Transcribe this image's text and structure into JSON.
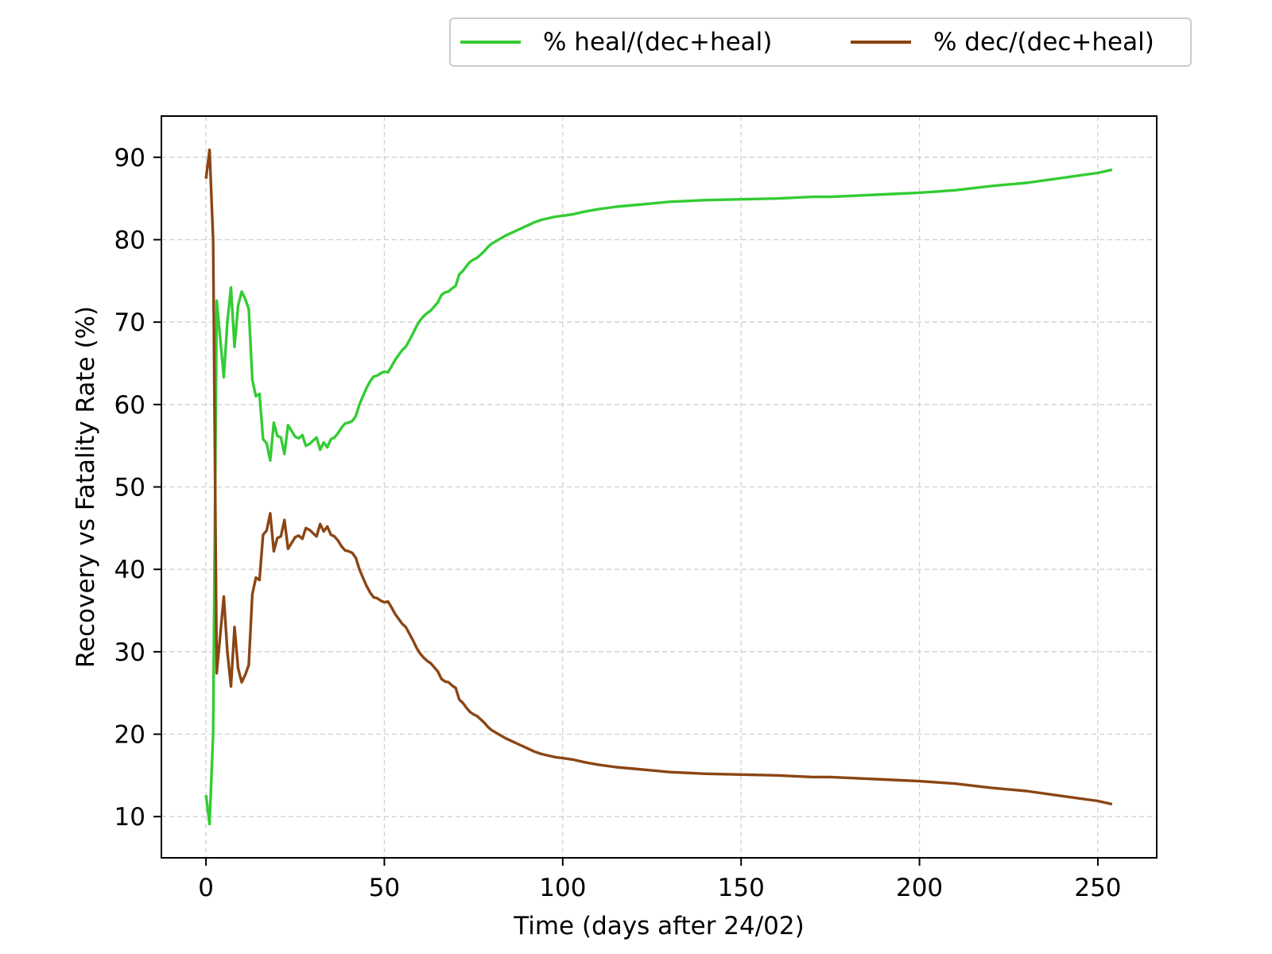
{
  "chart_data": {
    "type": "line",
    "title": "",
    "xlabel": "Time (days after 24/02)",
    "ylabel": "Recovery vs Fatality Rate (%)",
    "xlim": [
      -12.5,
      266.5
    ],
    "ylim": [
      5,
      95
    ],
    "xticks": [
      0,
      50,
      100,
      150,
      200,
      250
    ],
    "yticks": [
      10,
      20,
      30,
      40,
      50,
      60,
      70,
      80,
      90
    ],
    "grid": true,
    "legend_position": "top-right, outside above plot",
    "series": [
      {
        "name": "% heal/(dec+heal)",
        "color": "#33cc33",
        "points": [
          [
            0,
            12.6
          ],
          [
            1,
            9.1
          ],
          [
            2,
            20
          ],
          [
            3,
            72.6
          ],
          [
            4,
            68
          ],
          [
            5,
            63.3
          ],
          [
            6,
            70
          ],
          [
            7,
            74.2
          ],
          [
            8,
            67
          ],
          [
            9,
            72
          ],
          [
            10,
            73.7
          ],
          [
            11,
            72.8
          ],
          [
            12,
            71.6
          ],
          [
            13,
            63
          ],
          [
            14,
            61
          ],
          [
            15,
            61.3
          ],
          [
            16,
            55.8
          ],
          [
            17,
            55.3
          ],
          [
            18,
            53.2
          ],
          [
            19,
            57.8
          ],
          [
            20,
            56.2
          ],
          [
            21,
            56
          ],
          [
            22,
            54
          ],
          [
            23,
            57.5
          ],
          [
            24,
            56.8
          ],
          [
            25,
            56.1
          ],
          [
            26,
            55.9
          ],
          [
            27,
            56.3
          ],
          [
            28,
            55
          ],
          [
            29,
            55.2
          ],
          [
            30,
            55.6
          ],
          [
            31,
            56
          ],
          [
            32,
            54.5
          ],
          [
            33,
            55.4
          ],
          [
            34,
            54.8
          ],
          [
            35,
            55.8
          ],
          [
            36,
            56
          ],
          [
            37,
            56.5
          ],
          [
            38,
            57.2
          ],
          [
            39,
            57.7
          ],
          [
            40,
            57.8
          ],
          [
            41,
            58
          ],
          [
            42,
            58.6
          ],
          [
            43,
            60
          ],
          [
            44,
            61
          ],
          [
            45,
            62
          ],
          [
            46,
            62.8
          ],
          [
            47,
            63.4
          ],
          [
            48,
            63.5
          ],
          [
            49,
            63.8
          ],
          [
            50,
            64
          ],
          [
            51,
            63.9
          ],
          [
            52,
            64.6
          ],
          [
            53,
            65.4
          ],
          [
            54,
            66
          ],
          [
            55,
            66.6
          ],
          [
            56,
            67
          ],
          [
            57,
            67.8
          ],
          [
            58,
            68.6
          ],
          [
            59,
            69.5
          ],
          [
            60,
            70.2
          ],
          [
            61,
            70.7
          ],
          [
            62,
            71.1
          ],
          [
            63,
            71.4
          ],
          [
            64,
            71.9
          ],
          [
            65,
            72.4
          ],
          [
            66,
            73.3
          ],
          [
            67,
            73.6
          ],
          [
            68,
            73.7
          ],
          [
            69,
            74.1
          ],
          [
            70,
            74.4
          ],
          [
            71,
            75.8
          ],
          [
            72,
            76.2
          ],
          [
            73,
            76.8
          ],
          [
            74,
            77.3
          ],
          [
            75,
            77.6
          ],
          [
            76,
            77.8
          ],
          [
            77,
            78.2
          ],
          [
            78,
            78.6
          ],
          [
            79,
            79.1
          ],
          [
            80,
            79.5
          ],
          [
            82,
            80
          ],
          [
            84,
            80.5
          ],
          [
            86,
            80.9
          ],
          [
            88,
            81.3
          ],
          [
            90,
            81.7
          ],
          [
            92,
            82.1
          ],
          [
            94,
            82.4
          ],
          [
            96,
            82.6
          ],
          [
            98,
            82.8
          ],
          [
            100,
            82.9
          ],
          [
            103,
            83.1
          ],
          [
            106,
            83.4
          ],
          [
            110,
            83.7
          ],
          [
            115,
            84
          ],
          [
            120,
            84.2
          ],
          [
            125,
            84.4
          ],
          [
            130,
            84.6
          ],
          [
            135,
            84.7
          ],
          [
            140,
            84.8
          ],
          [
            150,
            84.9
          ],
          [
            160,
            85.0
          ],
          [
            170,
            85.2
          ],
          [
            175,
            85.2
          ],
          [
            180,
            85.3
          ],
          [
            190,
            85.5
          ],
          [
            200,
            85.7
          ],
          [
            210,
            86.0
          ],
          [
            220,
            86.5
          ],
          [
            230,
            86.9
          ],
          [
            240,
            87.5
          ],
          [
            245,
            87.8
          ],
          [
            250,
            88.1
          ],
          [
            254,
            88.5
          ]
        ]
      },
      {
        "name": "% dec/(dec+heal)",
        "color": "#8b4513",
        "points": [
          [
            0,
            87.4
          ],
          [
            1,
            90.9
          ],
          [
            2,
            80
          ],
          [
            3,
            27.4
          ],
          [
            4,
            32
          ],
          [
            5,
            36.7
          ],
          [
            6,
            30
          ],
          [
            7,
            25.8
          ],
          [
            8,
            33
          ],
          [
            9,
            28
          ],
          [
            10,
            26.3
          ],
          [
            11,
            27.2
          ],
          [
            12,
            28.4
          ],
          [
            13,
            37
          ],
          [
            14,
            39
          ],
          [
            15,
            38.7
          ],
          [
            16,
            44.2
          ],
          [
            17,
            44.7
          ],
          [
            18,
            46.8
          ],
          [
            19,
            42.2
          ],
          [
            20,
            43.8
          ],
          [
            21,
            44
          ],
          [
            22,
            46
          ],
          [
            23,
            42.5
          ],
          [
            24,
            43.2
          ],
          [
            25,
            43.9
          ],
          [
            26,
            44.1
          ],
          [
            27,
            43.7
          ],
          [
            28,
            45
          ],
          [
            29,
            44.8
          ],
          [
            30,
            44.4
          ],
          [
            31,
            44
          ],
          [
            32,
            45.5
          ],
          [
            33,
            44.6
          ],
          [
            34,
            45.2
          ],
          [
            35,
            44.2
          ],
          [
            36,
            44
          ],
          [
            37,
            43.5
          ],
          [
            38,
            42.8
          ],
          [
            39,
            42.3
          ],
          [
            40,
            42.2
          ],
          [
            41,
            42
          ],
          [
            42,
            41.4
          ],
          [
            43,
            40
          ],
          [
            44,
            39
          ],
          [
            45,
            38
          ],
          [
            46,
            37.2
          ],
          [
            47,
            36.6
          ],
          [
            48,
            36.5
          ],
          [
            49,
            36.2
          ],
          [
            50,
            36
          ],
          [
            51,
            36.1
          ],
          [
            52,
            35.4
          ],
          [
            53,
            34.6
          ],
          [
            54,
            34
          ],
          [
            55,
            33.4
          ],
          [
            56,
            33
          ],
          [
            57,
            32.2
          ],
          [
            58,
            31.4
          ],
          [
            59,
            30.5
          ],
          [
            60,
            29.8
          ],
          [
            61,
            29.3
          ],
          [
            62,
            28.9
          ],
          [
            63,
            28.6
          ],
          [
            64,
            28.1
          ],
          [
            65,
            27.6
          ],
          [
            66,
            26.7
          ],
          [
            67,
            26.4
          ],
          [
            68,
            26.3
          ],
          [
            69,
            25.9
          ],
          [
            70,
            25.6
          ],
          [
            71,
            24.2
          ],
          [
            72,
            23.8
          ],
          [
            73,
            23.2
          ],
          [
            74,
            22.7
          ],
          [
            75,
            22.4
          ],
          [
            76,
            22.2
          ],
          [
            77,
            21.8
          ],
          [
            78,
            21.4
          ],
          [
            79,
            20.9
          ],
          [
            80,
            20.5
          ],
          [
            82,
            20
          ],
          [
            84,
            19.5
          ],
          [
            86,
            19.1
          ],
          [
            88,
            18.7
          ],
          [
            90,
            18.3
          ],
          [
            92,
            17.9
          ],
          [
            94,
            17.6
          ],
          [
            96,
            17.4
          ],
          [
            98,
            17.2
          ],
          [
            100,
            17.1
          ],
          [
            103,
            16.9
          ],
          [
            106,
            16.6
          ],
          [
            110,
            16.3
          ],
          [
            115,
            16
          ],
          [
            120,
            15.8
          ],
          [
            125,
            15.6
          ],
          [
            130,
            15.4
          ],
          [
            135,
            15.3
          ],
          [
            140,
            15.2
          ],
          [
            150,
            15.1
          ],
          [
            160,
            15.0
          ],
          [
            170,
            14.8
          ],
          [
            175,
            14.8
          ],
          [
            180,
            14.7
          ],
          [
            190,
            14.5
          ],
          [
            200,
            14.3
          ],
          [
            210,
            14.0
          ],
          [
            220,
            13.5
          ],
          [
            230,
            13.1
          ],
          [
            240,
            12.5
          ],
          [
            245,
            12.2
          ],
          [
            250,
            11.9
          ],
          [
            254,
            11.5
          ]
        ]
      }
    ]
  }
}
